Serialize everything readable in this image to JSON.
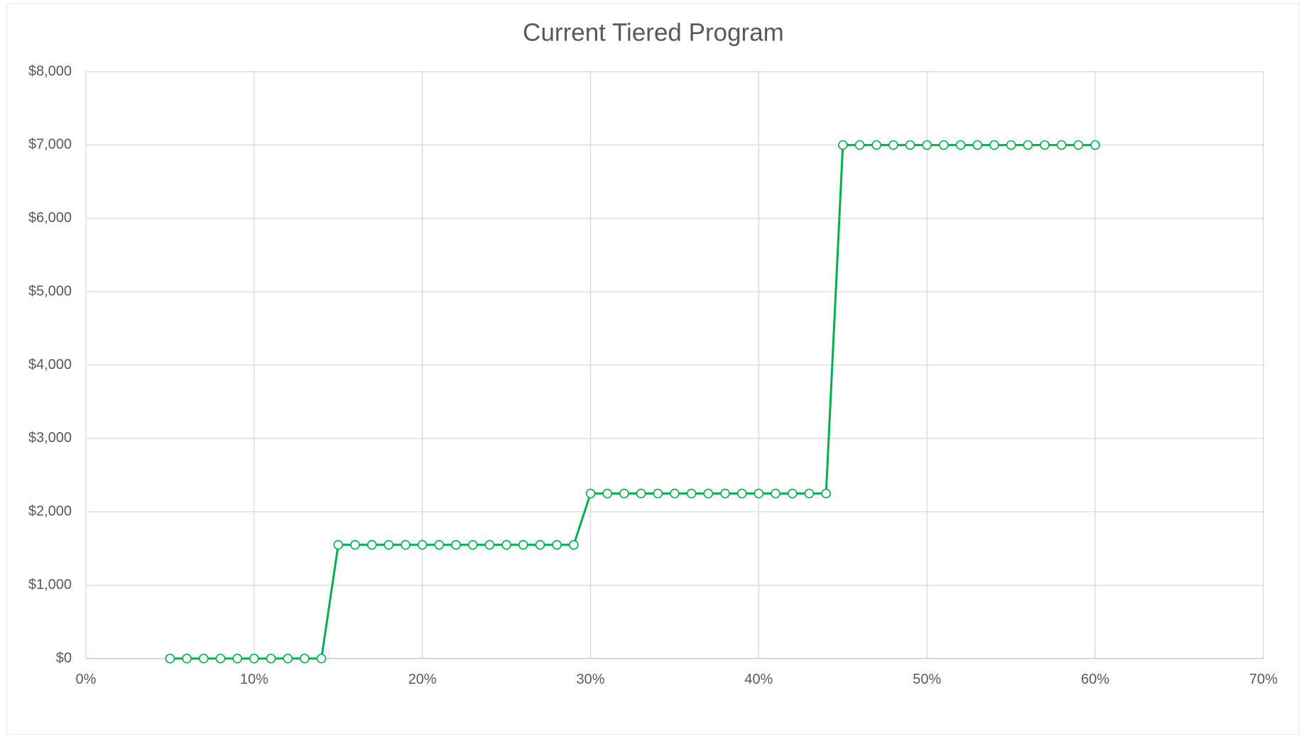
{
  "chart_data": {
    "type": "line",
    "title": "Current Tiered Program",
    "x": [
      5,
      6,
      7,
      8,
      9,
      10,
      11,
      12,
      13,
      14,
      15,
      16,
      17,
      18,
      19,
      20,
      21,
      22,
      23,
      24,
      25,
      26,
      27,
      28,
      29,
      30,
      31,
      32,
      33,
      34,
      35,
      36,
      37,
      38,
      39,
      40,
      41,
      42,
      43,
      44,
      45,
      46,
      47,
      48,
      49,
      50,
      51,
      52,
      53,
      54,
      55,
      56,
      57,
      58,
      59,
      60
    ],
    "series": [
      {
        "color": "#00b050",
        "values": [
          0,
          0,
          0,
          0,
          0,
          0,
          0,
          0,
          0,
          0,
          1550,
          1550,
          1550,
          1550,
          1550,
          1550,
          1550,
          1550,
          1550,
          1550,
          1550,
          1550,
          1550,
          1550,
          1550,
          2250,
          2250,
          2250,
          2250,
          2250,
          2250,
          2250,
          2250,
          2250,
          2250,
          2250,
          2250,
          2250,
          2250,
          2250,
          7000,
          7000,
          7000,
          7000,
          7000,
          7000,
          7000,
          7000,
          7000,
          7000,
          7000,
          7000,
          7000,
          7000,
          7000,
          7000
        ]
      }
    ],
    "xlim": [
      0,
      70
    ],
    "xticks": [
      {
        "value": 0,
        "label": "0%"
      },
      {
        "value": 10,
        "label": "10%"
      },
      {
        "value": 20,
        "label": "20%"
      },
      {
        "value": 30,
        "label": "30%"
      },
      {
        "value": 40,
        "label": "40%"
      },
      {
        "value": 50,
        "label": "50%"
      },
      {
        "value": 60,
        "label": "60%"
      },
      {
        "value": 70,
        "label": "70%"
      }
    ],
    "ylim": [
      0,
      8000
    ],
    "yticks": [
      {
        "value": 0,
        "label": "$0"
      },
      {
        "value": 1000,
        "label": "$1,000"
      },
      {
        "value": 2000,
        "label": "$2,000"
      },
      {
        "value": 3000,
        "label": "$3,000"
      },
      {
        "value": 4000,
        "label": "$4,000"
      },
      {
        "value": 5000,
        "label": "$5,000"
      },
      {
        "value": 6000,
        "label": "$6,000"
      },
      {
        "value": 7000,
        "label": "$7,000"
      },
      {
        "value": 8000,
        "label": "$8,000"
      }
    ],
    "grid": true
  }
}
